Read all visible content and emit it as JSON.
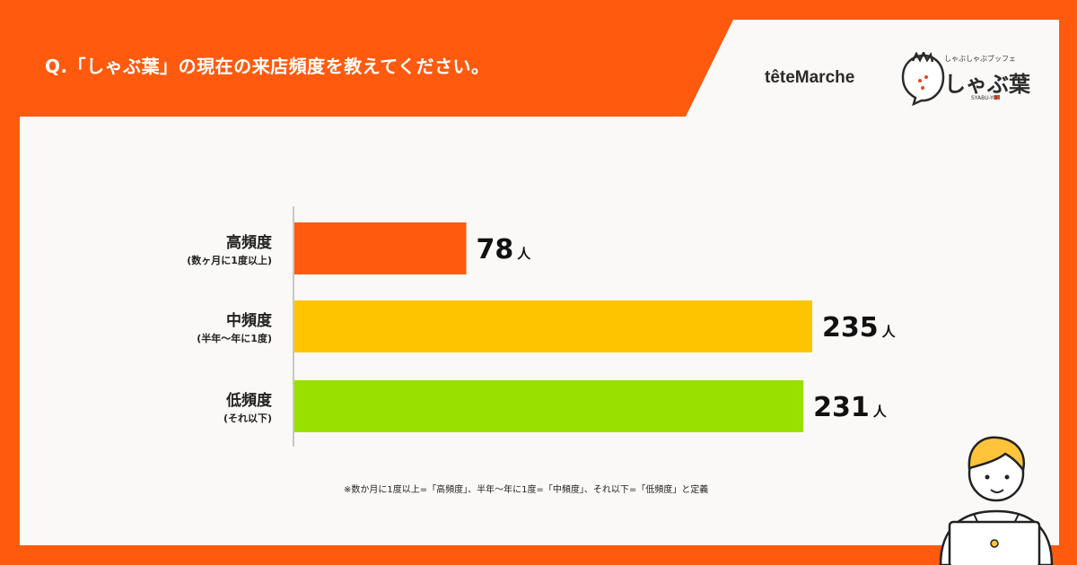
{
  "header": {
    "question": "Q.「しゃぶ葉」の現在の来店頻度を教えてください。"
  },
  "logos": {
    "tete_marche": "têteMarche",
    "shabu_tagline": "しゃぶしゃぶブッフェ",
    "shabu_name": "しゃぶ葉",
    "shabu_sub": "SYABU-YO"
  },
  "colors": {
    "brand_orange": "#ff5a0d",
    "bar_high": "#ff5a0d",
    "bar_mid": "#ffc400",
    "bar_low": "#99e000"
  },
  "chart_data": {
    "type": "bar",
    "orientation": "horizontal",
    "categories": [
      "高頻度",
      "中頻度",
      "低頻度"
    ],
    "sublabels": [
      "(数ヶ月に1度以上)",
      "(半年〜年に1度)",
      "(それ以下)"
    ],
    "values": [
      78,
      235,
      231
    ],
    "unit": "人",
    "xlim": [
      0,
      235
    ],
    "grid": false,
    "title": "",
    "xlabel": "",
    "ylabel": ""
  },
  "footnote": "※数か月に1度以上=「高頻度」、半年〜年に1度=「中頻度」、それ以下=「低頻度」と定義"
}
